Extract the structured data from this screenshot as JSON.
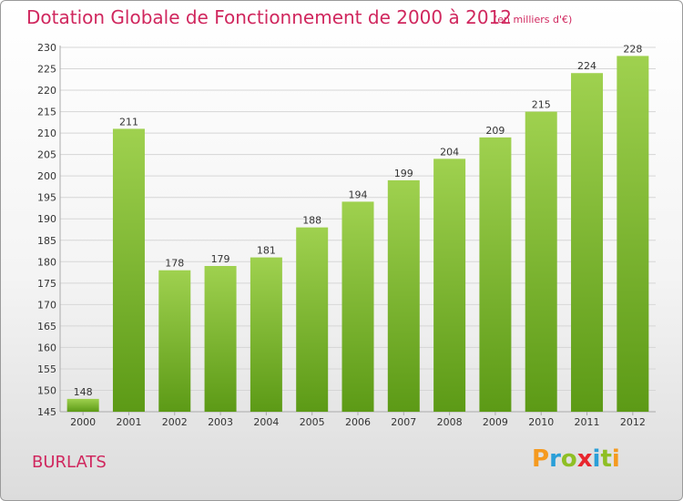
{
  "header": {
    "title": "Dotation Globale de Fonctionnement de 2000 à 2012",
    "unit": "(en milliers d'€)"
  },
  "commune": "BURLATS",
  "logo": {
    "text": "Proxiti",
    "letters": [
      "P",
      "r",
      "o",
      "x",
      "i",
      "t",
      "i"
    ],
    "colors": [
      "#f59a1f",
      "#2a9fd8",
      "#8fbf24",
      "#e8262e",
      "#2a9fd8",
      "#8fbf24",
      "#f59a1f"
    ]
  },
  "chart_data": {
    "type": "bar",
    "title": "Dotation Globale de Fonctionnement de 2000 à 2012",
    "subtitle": "(en milliers d'€)",
    "categories": [
      "2000",
      "2001",
      "2002",
      "2003",
      "2004",
      "2005",
      "2006",
      "2007",
      "2008",
      "2009",
      "2010",
      "2011",
      "2012"
    ],
    "values": [
      148,
      211,
      178,
      179,
      181,
      188,
      194,
      199,
      204,
      209,
      215,
      224,
      228
    ],
    "ylim": [
      145,
      230
    ],
    "yticks": [
      145,
      150,
      155,
      160,
      165,
      170,
      175,
      180,
      185,
      190,
      195,
      200,
      205,
      210,
      215,
      220,
      225,
      230
    ],
    "grid": true,
    "bar_color": "#7cbf2c",
    "bar_color_light": "#9fd14f",
    "bar_color_dark": "#5c9a16"
  }
}
